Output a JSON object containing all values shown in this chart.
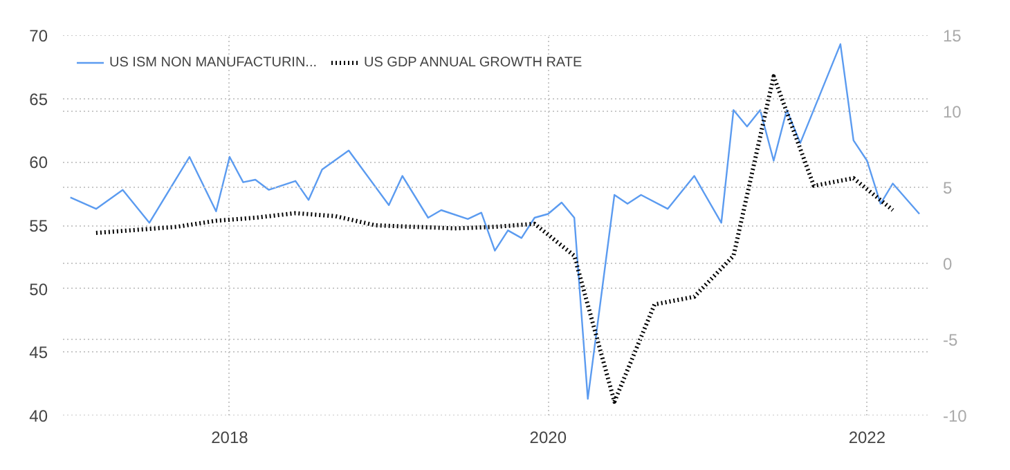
{
  "chart_data": {
    "type": "line",
    "xlim": [
      "2016-12-15",
      "2022-05-20"
    ],
    "xticks": [
      {
        "value": "2018-01-01",
        "label": "2018"
      },
      {
        "value": "2020-01-01",
        "label": "2020"
      },
      {
        "value": "2022-01-01",
        "label": "2022"
      }
    ],
    "ylim": [
      40,
      70
    ],
    "yticks": [
      40,
      45,
      50,
      55,
      60,
      65,
      70
    ],
    "y2lim": [
      -10,
      15
    ],
    "y2ticks": [
      -10,
      -5,
      0,
      5,
      10,
      15
    ],
    "grid": true,
    "legend": "top left",
    "line_style": "solid",
    "series": [
      {
        "name": "US ISM NON MANUFACTURIN...",
        "color": "#5b9bf0",
        "x": [
          "2017-01",
          "2017-03",
          "2017-05",
          "2017-07",
          "2017-10",
          "2017-12",
          "2018-01",
          "2018-02",
          "2018-03",
          "2018-04",
          "2018-06",
          "2018-07",
          "2018-08",
          "2018-10",
          "2019-01",
          "2019-02",
          "2019-04",
          "2019-05",
          "2019-07",
          "2019-08",
          "2019-09",
          "2019-10",
          "2019-11",
          "2019-12",
          "2020-01",
          "2020-02",
          "2020-03",
          "2020-04",
          "2020-06",
          "2020-07",
          "2020-08",
          "2020-10",
          "2020-12",
          "2021-02",
          "2021-03",
          "2021-04",
          "2021-05",
          "2021-06",
          "2021-07",
          "2021-08",
          "2021-11",
          "2021-12",
          "2022-01",
          "2022-02",
          "2022-03",
          "2022-05"
        ],
        "values": [
          57.2,
          56.3,
          57.8,
          55.2,
          60.4,
          56.1,
          60.4,
          58.4,
          58.6,
          57.8,
          58.5,
          57.0,
          59.4,
          60.9,
          56.6,
          58.9,
          55.6,
          56.2,
          55.5,
          56.0,
          53.0,
          54.6,
          54.0,
          55.6,
          55.9,
          56.8,
          55.6,
          41.3,
          57.4,
          56.7,
          57.4,
          56.3,
          58.9,
          55.2,
          64.1,
          62.8,
          64.1,
          60.1,
          64.1,
          61.5,
          69.3,
          61.7,
          60.1,
          56.7,
          58.3,
          55.9
        ]
      },
      {
        "name": "US GDP ANNUAL GROWTH RATE",
        "color": "#000000",
        "axis": "y2",
        "line_style": "dotted",
        "x": [
          "2017-03",
          "2017-06",
          "2017-09",
          "2017-12",
          "2018-03",
          "2018-06",
          "2018-09",
          "2018-12",
          "2019-03",
          "2019-06",
          "2019-09",
          "2019-12",
          "2020-03",
          "2020-06",
          "2020-09",
          "2020-12",
          "2021-03",
          "2021-06",
          "2021-09",
          "2021-12",
          "2022-03"
        ],
        "values": [
          2.0,
          2.2,
          2.4,
          2.8,
          3.0,
          3.3,
          3.1,
          2.5,
          2.4,
          2.3,
          2.4,
          2.6,
          0.5,
          -9.1,
          -2.7,
          -2.2,
          0.5,
          12.3,
          5.1,
          5.6,
          3.5
        ]
      }
    ]
  }
}
